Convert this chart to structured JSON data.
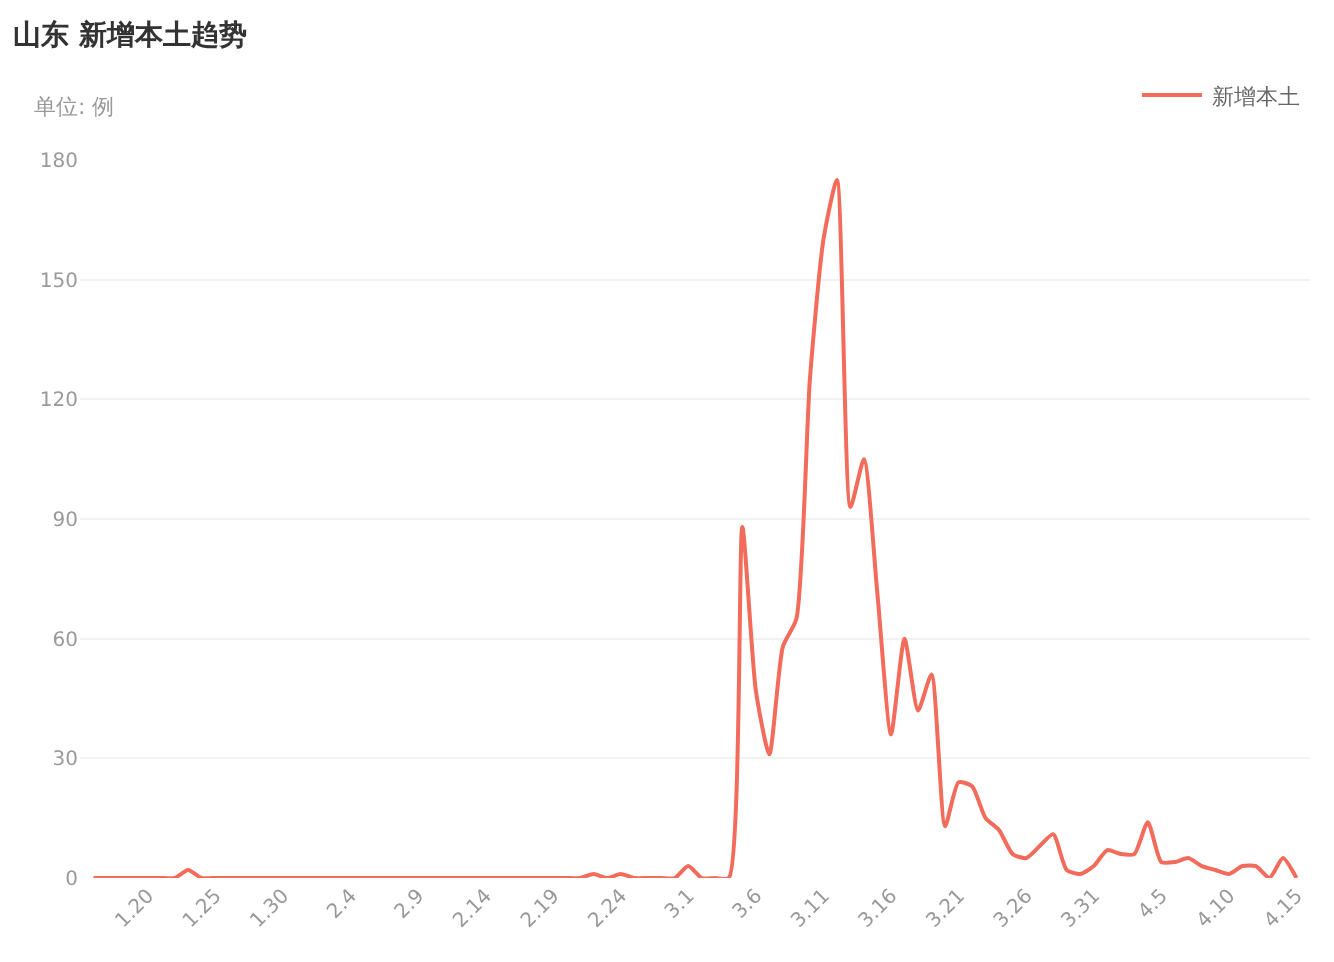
{
  "chart_data": {
    "type": "line",
    "title": "山东 新增本土趋势",
    "subtitle": "单位: 例",
    "categories": [
      null,
      null,
      null,
      null,
      "1.20",
      null,
      null,
      null,
      null,
      "1.25",
      null,
      null,
      null,
      null,
      "1.30",
      null,
      null,
      null,
      null,
      "2.4",
      null,
      null,
      null,
      null,
      "2.9",
      null,
      null,
      null,
      null,
      "2.14",
      null,
      null,
      null,
      null,
      "2.19",
      null,
      null,
      null,
      null,
      "2.24",
      null,
      null,
      null,
      null,
      "3.1",
      null,
      null,
      null,
      null,
      "3.6",
      null,
      null,
      null,
      null,
      "3.11",
      null,
      null,
      null,
      null,
      "3.16",
      null,
      null,
      null,
      null,
      "3.21",
      null,
      null,
      null,
      null,
      "3.26",
      null,
      null,
      null,
      null,
      "3.31",
      null,
      null,
      null,
      null,
      "4.5",
      null,
      null,
      null,
      null,
      "4.10",
      null,
      null,
      null,
      null,
      "4.15"
    ],
    "series": [
      {
        "name": "新增本土",
        "color": "#f26b5b",
        "values": [
          0,
          0,
          0,
          0,
          0,
          0,
          0,
          2,
          0,
          0,
          0,
          0,
          0,
          0,
          0,
          0,
          0,
          0,
          0,
          0,
          0,
          0,
          0,
          0,
          0,
          0,
          0,
          0,
          0,
          0,
          0,
          0,
          0,
          0,
          0,
          0,
          0,
          1,
          0,
          1,
          0,
          0,
          0,
          0,
          3,
          0,
          0,
          0,
          88,
          47,
          31,
          58,
          65,
          125,
          160,
          175,
          93,
          105,
          71,
          36,
          60,
          42,
          51,
          13,
          24,
          23,
          15,
          12,
          6,
          5,
          8,
          11,
          2,
          1,
          3,
          7,
          6,
          6,
          14,
          4,
          4,
          5,
          3,
          2,
          1,
          3,
          3,
          0,
          5,
          0
        ]
      }
    ],
    "ylim": [
      0,
      180
    ],
    "yticks": [
      0,
      30,
      60,
      90,
      120,
      150,
      180
    ],
    "grid": "y",
    "legend": "top right",
    "marker": "none",
    "line_style": "solid"
  }
}
